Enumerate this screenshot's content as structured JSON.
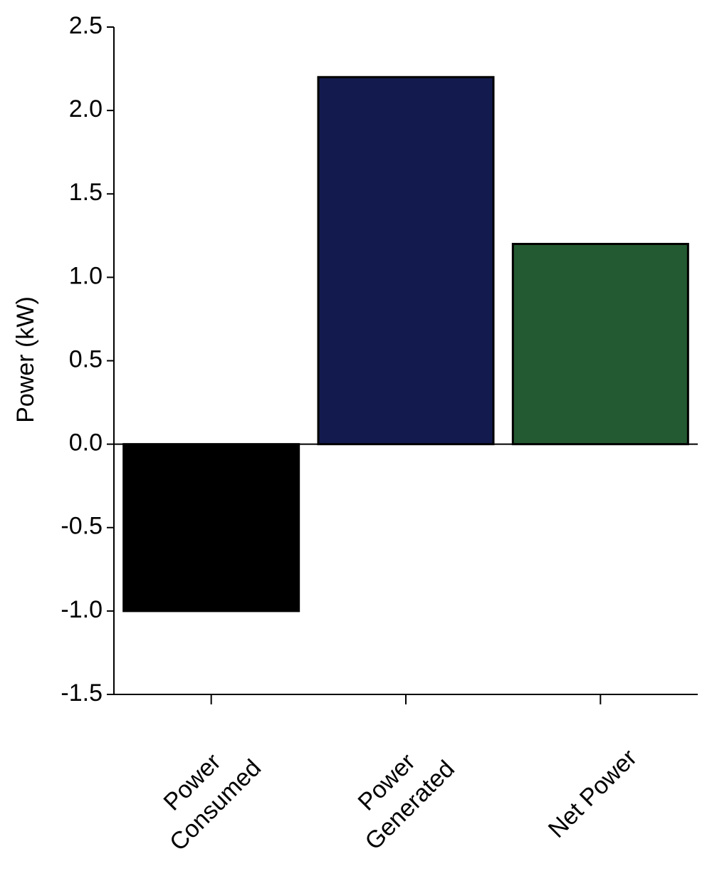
{
  "chart_data": {
    "type": "bar",
    "y_label": "Power (kW)",
    "categories": [
      "Power\nConsumed",
      "Power\nGenerated",
      "Net Power"
    ],
    "values": [
      -1.0,
      2.2,
      1.2
    ],
    "colors": [
      "#000000",
      "#131a4e",
      "#245a32"
    ],
    "ylim": [
      -1.5,
      2.5
    ],
    "yticks": [
      -1.5,
      {
        "value": -1,
        "label": "-1.0"
      },
      -0.5,
      {
        "value": 0,
        "label": "0.0"
      },
      0.5,
      {
        "value": 1,
        "label": "1.0"
      },
      1.5,
      {
        "value": 2,
        "label": "2.0"
      },
      2.5
    ],
    "grid": false
  }
}
